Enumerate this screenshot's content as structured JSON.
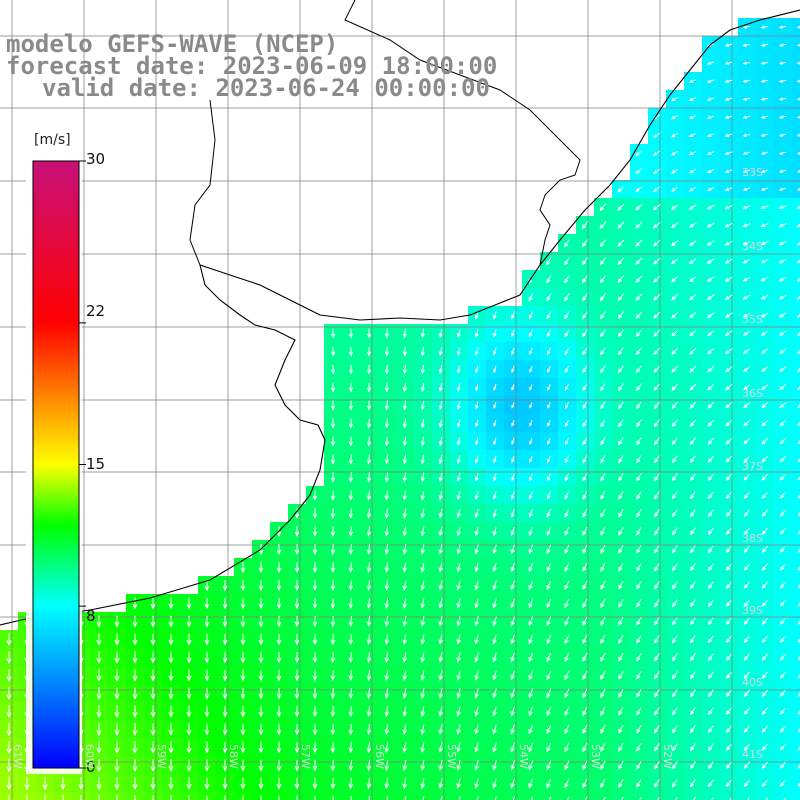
{
  "title": {
    "line1": "modelo GEFS-WAVE (NCEP)",
    "line2": "forecast date: 2023-06-09 18:00:00",
    "line3": "valid date: 2023-06-24 00:00:00"
  },
  "colorbar": {
    "unit": "[m/s]",
    "min": 0,
    "max": 30,
    "ticks": [
      {
        "value": 30,
        "label": "30"
      },
      {
        "value": 22,
        "label": "22"
      },
      {
        "value": 15,
        "label": "15"
      },
      {
        "value": 8,
        "label": "8"
      },
      {
        "value": 0,
        "label": "0"
      }
    ],
    "stops": [
      {
        "value": 0,
        "color": "#0000ff"
      },
      {
        "value": 8,
        "color": "#00ffff"
      },
      {
        "value": 12,
        "color": "#00ff00"
      },
      {
        "value": 15,
        "color": "#ffff00"
      },
      {
        "value": 22,
        "color": "#ff0000"
      },
      {
        "value": 30,
        "color": "#c8107a"
      }
    ]
  },
  "map": {
    "lat_range": [
      -41,
      -31
    ],
    "lon_range": [
      -61,
      -51
    ],
    "lat_labels": [
      "33S",
      "34S",
      "35S",
      "36S",
      "37S",
      "38S",
      "39S",
      "40S",
      "41S"
    ],
    "lon_labels": [
      "61W",
      "60W",
      "59W",
      "58W",
      "57W",
      "56W",
      "55W",
      "54W",
      "53W",
      "52W"
    ],
    "land_color": "#ffffff",
    "grid_color": "#808080",
    "coast_color": "#000000"
  }
}
